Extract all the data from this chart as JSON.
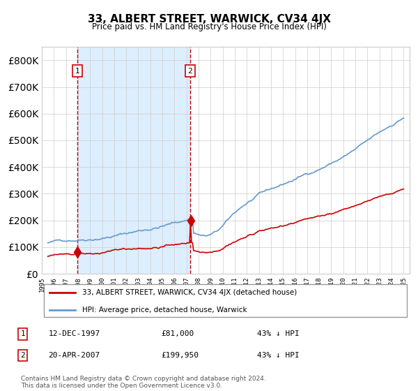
{
  "title": "33, ALBERT STREET, WARWICK, CV34 4JX",
  "subtitle": "Price paid vs. HM Land Registry's House Price Index (HPI)",
  "legend_property": "33, ALBERT STREET, WARWICK, CV34 4JX (detached house)",
  "legend_hpi": "HPI: Average price, detached house, Warwick",
  "sale1_date_num": 1997.95,
  "sale1_price": 81000,
  "sale2_date_num": 2007.3,
  "sale2_price": 199950,
  "property_color": "#cc0000",
  "hpi_color": "#6699cc",
  "shade_color": "#ddeeff",
  "vline_color": "#cc0000",
  "grid_color": "#cccccc",
  "ylim": [
    0,
    850000
  ],
  "xlim_start": 1995.5,
  "xlim_end": 2025.5
}
